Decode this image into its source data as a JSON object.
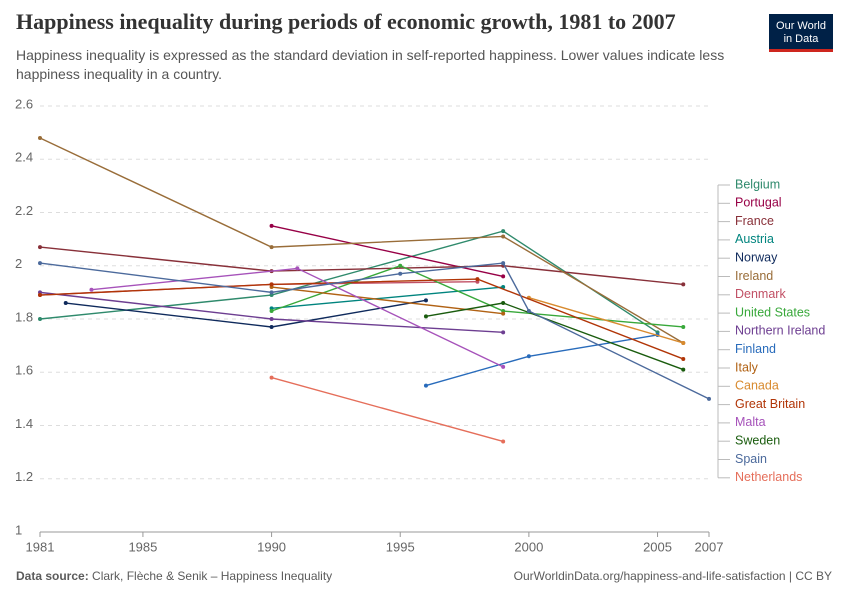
{
  "chart_data": {
    "type": "line",
    "title": "Happiness inequality during periods of economic growth, 1981 to 2007",
    "subtitle": "Happiness inequality is expressed as the standard deviation in self-reported happiness. Lower values indicate less happiness inequality in a country.",
    "logo": [
      "Our World",
      "in Data"
    ],
    "source_label": "Data source:",
    "source": "Clark, Flèche & Senik – Happiness Inequality",
    "url": "OurWorldinData.org/happiness-and-life-satisfaction | CC BY",
    "xlim": [
      1981,
      2007
    ],
    "xticks": [
      1981,
      1985,
      1990,
      1995,
      2000,
      2005,
      2007
    ],
    "ylim": [
      1,
      2.6
    ],
    "yticks": [
      1,
      1.2,
      1.4,
      1.6,
      1.8,
      2,
      2.2,
      2.4,
      2.6
    ],
    "grid": true,
    "legend": "right",
    "series": [
      {
        "name": "Belgium",
        "color": "#2f8a6c",
        "x": [
          1981,
          1990,
          1999,
          2005
        ],
        "values": [
          1.8,
          1.89,
          2.13,
          1.75
        ]
      },
      {
        "name": "Portugal",
        "color": "#970046",
        "x": [
          1990,
          1999
        ],
        "values": [
          2.15,
          1.96
        ]
      },
      {
        "name": "France",
        "color": "#883039",
        "x": [
          1981,
          1990,
          1999,
          2006
        ],
        "values": [
          2.07,
          1.98,
          2.0,
          1.93
        ]
      },
      {
        "name": "Austria",
        "color": "#00847e",
        "x": [
          1990,
          1999
        ],
        "values": [
          1.84,
          1.92
        ]
      },
      {
        "name": "Norway",
        "color": "#0f2a5c",
        "x": [
          1982,
          1990,
          1996
        ],
        "values": [
          1.86,
          1.77,
          1.87
        ]
      },
      {
        "name": "Ireland",
        "color": "#996d39",
        "x": [
          1981,
          1990,
          1999,
          2006
        ],
        "values": [
          2.48,
          2.07,
          2.11,
          1.71
        ]
      },
      {
        "name": "Denmark",
        "color": "#c15065",
        "x": [
          1981,
          1990,
          1998
        ],
        "values": [
          1.89,
          1.93,
          1.94
        ]
      },
      {
        "name": "United States",
        "color": "#38a83a",
        "x": [
          1990,
          1995,
          1999,
          2006
        ],
        "values": [
          1.83,
          2.0,
          1.83,
          1.77
        ]
      },
      {
        "name": "Northern Ireland",
        "color": "#6d3e91",
        "x": [
          1981,
          1990,
          1999
        ],
        "values": [
          1.9,
          1.8,
          1.75
        ]
      },
      {
        "name": "Finland",
        "color": "#286bbb",
        "x": [
          1996,
          2000,
          2005
        ],
        "values": [
          1.55,
          1.66,
          1.74
        ]
      },
      {
        "name": "Italy",
        "color": "#b16214",
        "x": [
          1990,
          1999
        ],
        "values": [
          1.92,
          1.82
        ]
      },
      {
        "name": "Canada",
        "color": "#d88a2e",
        "x": [
          2000,
          2006
        ],
        "values": [
          1.88,
          1.71
        ]
      },
      {
        "name": "Great Britain",
        "color": "#b13507",
        "x": [
          1981,
          1990,
          1998,
          2006
        ],
        "values": [
          1.89,
          1.93,
          1.95,
          1.65
        ]
      },
      {
        "name": "Malta",
        "color": "#a652ba",
        "x": [
          1983,
          1991,
          1999
        ],
        "values": [
          1.91,
          1.99,
          1.62
        ]
      },
      {
        "name": "Sweden",
        "color": "#1a5c0e",
        "x": [
          1996,
          1999,
          2006
        ],
        "values": [
          1.81,
          1.86,
          1.61
        ]
      },
      {
        "name": "Spain",
        "color": "#4c6a9c",
        "x": [
          1981,
          1990,
          1995,
          1999,
          2000,
          2007
        ],
        "values": [
          2.01,
          1.9,
          1.97,
          2.01,
          1.83,
          1.5
        ]
      },
      {
        "name": "Netherlands",
        "color": "#e56e5a",
        "x": [
          1990,
          1999
        ],
        "values": [
          1.58,
          1.34
        ]
      }
    ]
  }
}
